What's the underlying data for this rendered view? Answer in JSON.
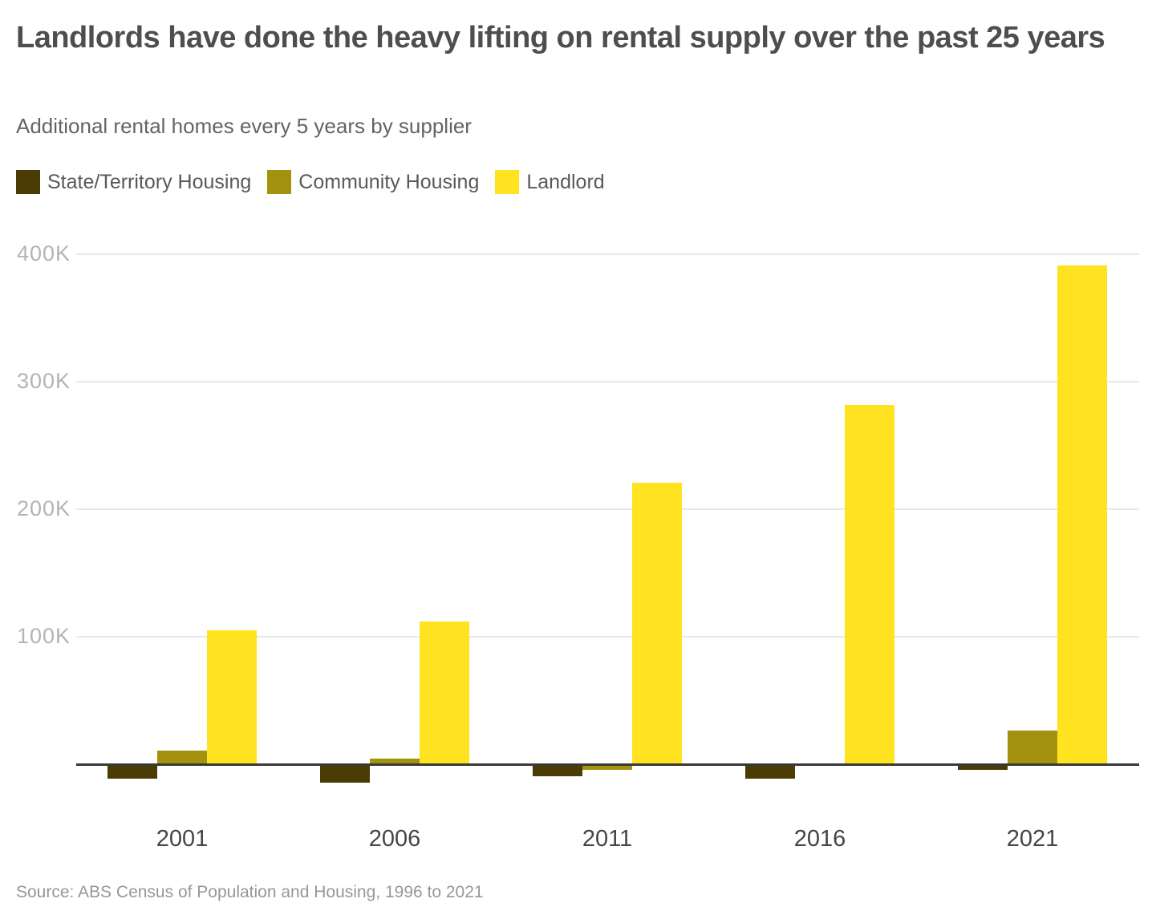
{
  "header": {
    "title": "Landlords have done the heavy lifting on rental supply over the past 25 years",
    "subtitle": "Additional rental homes every 5 years by supplier"
  },
  "legend": [
    {
      "label": "State/Territory Housing",
      "color": "#4a3c04"
    },
    {
      "label": "Community Housing",
      "color": "#a3920d"
    },
    {
      "label": "Landlord",
      "color": "#ffe320"
    }
  ],
  "source": "Source: ABS Census of Population and Housing, 1996 to 2021",
  "chart_data": {
    "type": "bar",
    "categories": [
      "2001",
      "2006",
      "2011",
      "2016",
      "2021"
    ],
    "series": [
      {
        "name": "State/Territory Housing",
        "key": "state-territory-housing",
        "color": "#4a3c04",
        "values": [
          -11000,
          -14000,
          -9000,
          -11000,
          -4000
        ]
      },
      {
        "name": "Community Housing",
        "key": "community-housing",
        "color": "#a3920d",
        "values": [
          11000,
          5000,
          -4000,
          0,
          27000
        ]
      },
      {
        "name": "Landlord",
        "key": "landlord",
        "color": "#ffe320",
        "values": [
          105000,
          112000,
          221000,
          282000,
          391000
        ]
      }
    ],
    "title": "Landlords have done the heavy lifting on rental supply over the past 25 years",
    "subtitle": "Additional rental homes every 5 years by supplier",
    "xlabel": "",
    "ylabel": "",
    "yticks": [
      100000,
      200000,
      300000,
      400000
    ],
    "ytick_labels": [
      "100K",
      "200K",
      "300K",
      "400K"
    ],
    "ylim": [
      -25000,
      420000
    ],
    "grid": "horizontal",
    "legend_position": "top",
    "colors": {
      "grid": "#e8e8e8",
      "zero_line": "#383838",
      "tick_label": "#b4b4b4",
      "x_label": "#454545"
    }
  }
}
